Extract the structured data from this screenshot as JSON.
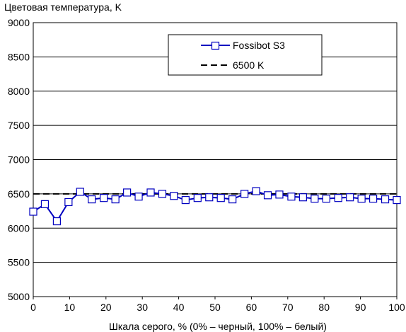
{
  "chart_data": {
    "type": "line",
    "title": "Цветовая температура, K",
    "xlabel": "Шкала серого, % (0% – черный, 100% – белый)",
    "ylabel": "",
    "xlim": [
      0,
      100
    ],
    "ylim": [
      5000,
      9000
    ],
    "xticks": [
      0,
      10,
      20,
      30,
      40,
      50,
      60,
      70,
      80,
      90,
      100
    ],
    "yticks": [
      5000,
      5500,
      6000,
      6500,
      7000,
      7500,
      8000,
      8500,
      9000
    ],
    "grid": "horizontal",
    "legend_position": "top-right",
    "series": [
      {
        "name": "Fossibot S3",
        "color": "#0000c0",
        "marker": "square",
        "x": [
          0,
          3.2,
          6.5,
          9.7,
          12.9,
          16.1,
          19.4,
          22.6,
          25.8,
          29.0,
          32.3,
          35.5,
          38.7,
          41.9,
          45.2,
          48.4,
          51.6,
          54.8,
          58.1,
          61.3,
          64.5,
          67.7,
          71.0,
          74.2,
          77.4,
          80.6,
          83.9,
          87.1,
          90.3,
          93.5,
          96.8,
          100
        ],
        "y": [
          6240,
          6350,
          6100,
          6380,
          6530,
          6420,
          6440,
          6420,
          6520,
          6460,
          6520,
          6500,
          6470,
          6410,
          6440,
          6450,
          6440,
          6420,
          6500,
          6540,
          6480,
          6490,
          6460,
          6450,
          6430,
          6430,
          6440,
          6450,
          6430,
          6430,
          6420,
          6410
        ]
      },
      {
        "name": "6500 K",
        "color": "#000000",
        "style": "dashed",
        "x": [
          0,
          100
        ],
        "y": [
          6500,
          6500
        ]
      }
    ],
    "tick_labels_x": [
      "0",
      "10",
      "20",
      "30",
      "40",
      "50",
      "60",
      "70",
      "80",
      "90",
      "100"
    ],
    "tick_labels_y": [
      "5000",
      "5500",
      "6000",
      "6500",
      "7000",
      "7500",
      "8000",
      "8500",
      "9000"
    ]
  }
}
